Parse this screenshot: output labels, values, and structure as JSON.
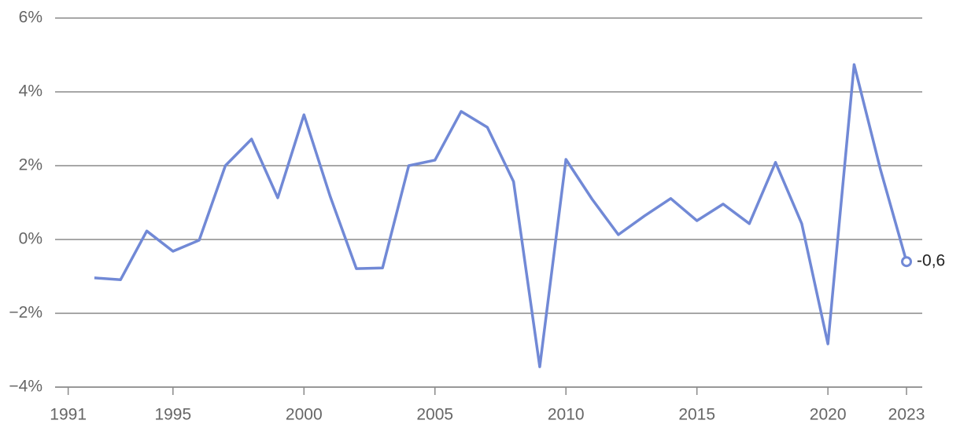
{
  "chart_data": {
    "type": "line",
    "x": [
      1992,
      1993,
      1994,
      1995,
      1996,
      1997,
      1998,
      1999,
      2000,
      2001,
      2002,
      2003,
      2004,
      2005,
      2006,
      2007,
      2008,
      2009,
      2010,
      2011,
      2012,
      2013,
      2014,
      2015,
      2016,
      2017,
      2018,
      2019,
      2020,
      2021,
      2022,
      2023
    ],
    "series": [
      {
        "color": "#7189d6",
        "values": [
          -1.04,
          -1.09,
          0.23,
          -0.32,
          -0.02,
          2.0,
          2.72,
          1.13,
          3.38,
          1.17,
          -0.79,
          -0.77,
          2.0,
          2.15,
          3.47,
          3.04,
          1.57,
          -3.45,
          2.17,
          1.09,
          0.13,
          0.64,
          1.11,
          0.51,
          0.96,
          0.43,
          2.09,
          0.43,
          -2.83,
          4.74,
          1.91,
          -0.6
        ],
        "value_labels": [
          null,
          null,
          null,
          null,
          null,
          null,
          null,
          null,
          null,
          null,
          null,
          null,
          null,
          null,
          null,
          null,
          null,
          null,
          null,
          null,
          null,
          null,
          null,
          null,
          null,
          null,
          null,
          null,
          null,
          null,
          null,
          "-0,6"
        ]
      }
    ],
    "xlim": [
      1990.5,
      2023.6
    ],
    "xticks": [
      1991,
      1995,
      2000,
      2005,
      2010,
      2015,
      2020,
      2023
    ],
    "ylim": [
      -4,
      6
    ],
    "yticks": [
      {
        "value": 6,
        "label": "6%"
      },
      {
        "value": 4,
        "label": "4%"
      },
      {
        "value": 2,
        "label": "2%"
      },
      {
        "value": 0,
        "label": "0%"
      },
      {
        "value": -2,
        "label": "−2%"
      },
      {
        "value": -4,
        "label": "−4%"
      }
    ],
    "grid": true
  }
}
